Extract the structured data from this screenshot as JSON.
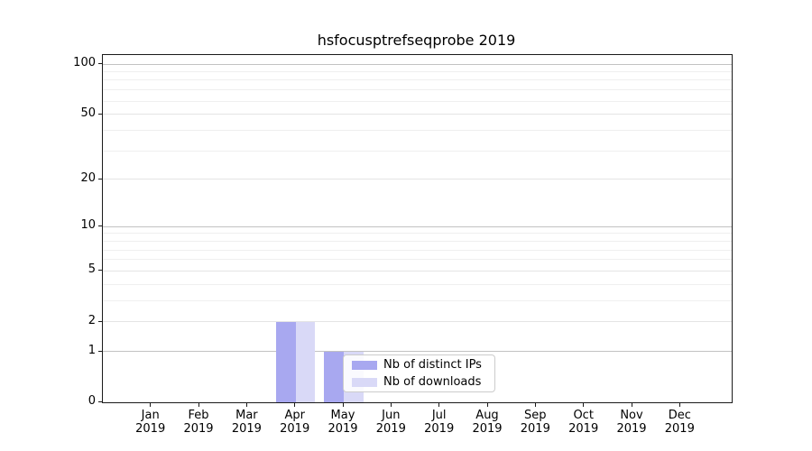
{
  "chart_data": {
    "type": "bar",
    "title": "hsfocusptrefseqprobe 2019",
    "categories": [
      "Jan",
      "Feb",
      "Mar",
      "Apr",
      "May",
      "Jun",
      "Jul",
      "Aug",
      "Sep",
      "Oct",
      "Nov",
      "Dec"
    ],
    "category_year": "2019",
    "series": [
      {
        "name": "Nb of distinct IPs",
        "color": "#a8a8f0",
        "values": [
          0,
          0,
          0,
          2,
          1,
          0,
          0,
          0,
          0,
          0,
          0,
          0
        ]
      },
      {
        "name": "Nb of downloads",
        "color": "#d9d9f7",
        "values": [
          0,
          0,
          0,
          2,
          1,
          0,
          0,
          0,
          0,
          0,
          0,
          0
        ]
      }
    ],
    "yscale": "log1p",
    "ylim": [
      0,
      111
    ],
    "y_major_ticks": [
      0,
      1,
      2,
      5,
      10,
      20,
      50,
      100
    ],
    "y_decade_gridlines": [
      1,
      10,
      100
    ],
    "y_mid_gridlines": [
      2,
      5,
      20,
      50
    ],
    "y_minor_gridlines": [
      3,
      4,
      6,
      7,
      8,
      9,
      30,
      40,
      60,
      70,
      80,
      90
    ],
    "grid": true,
    "legend": {
      "position": "inside-lower-middle"
    },
    "colors": {
      "grid_decade": "#c2c2c2",
      "grid_mid": "#e4e4e4",
      "grid_minor": "#efefef",
      "axis": "#1a1a1a"
    }
  }
}
